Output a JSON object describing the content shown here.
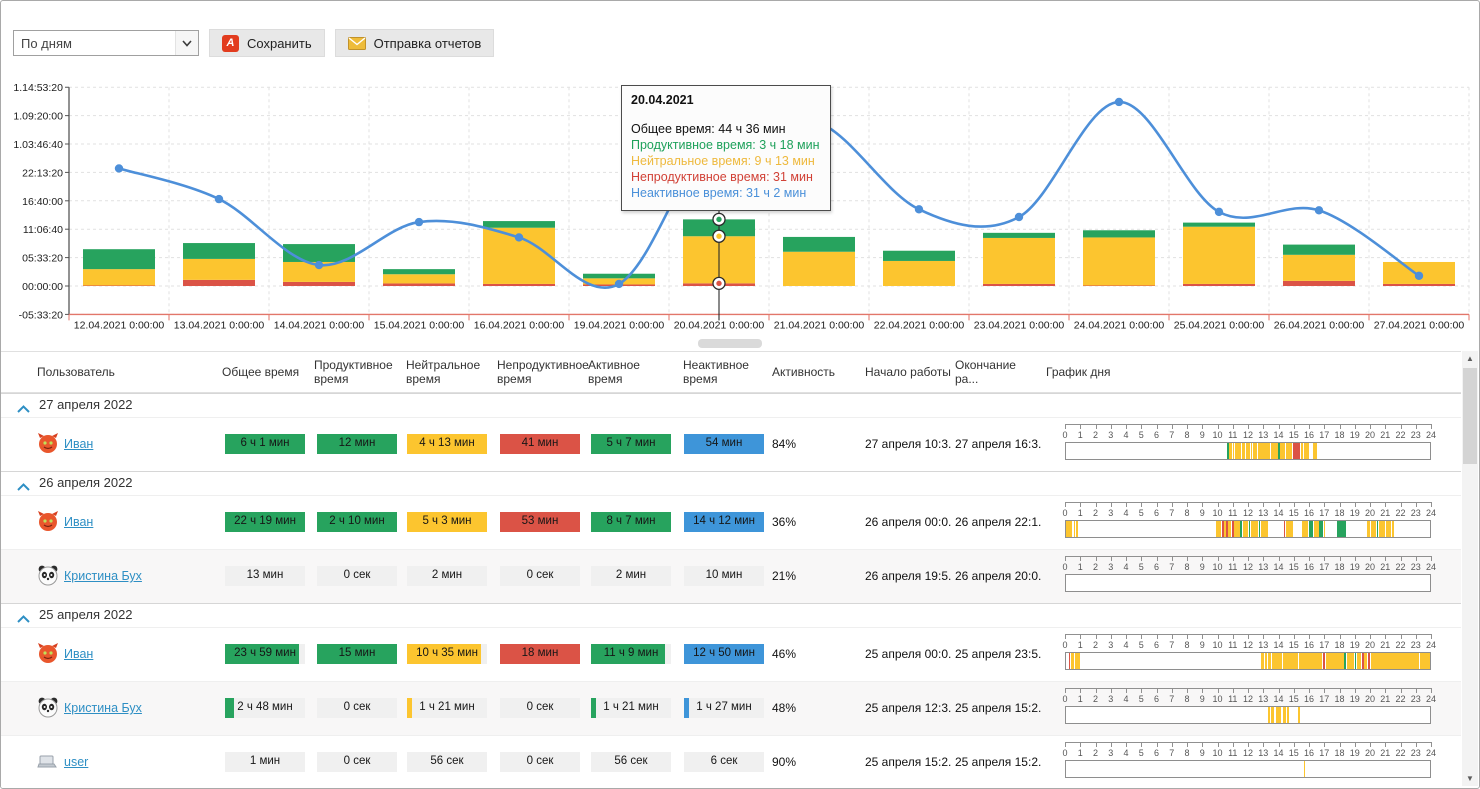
{
  "toolbar": {
    "period_select": "По дням",
    "save_label": "Сохранить",
    "send_label": "Отправка отчетов"
  },
  "chart_data": {
    "type": "bar",
    "title": "",
    "y_tick_labels": [
      "1.14:53:20",
      "1.09:20:00",
      "1.03:46:40",
      "22:13:20",
      "16:40:00",
      "11:06:40",
      "05:33:20",
      "00:00:00",
      "-05:33:20"
    ],
    "y_range_hours": [
      -5.556,
      38.889
    ],
    "categories": [
      "12.04.2021 0:00:00",
      "13.04.2021 0:00:00",
      "14.04.2021 0:00:00",
      "15.04.2021 0:00:00",
      "16.04.2021 0:00:00",
      "19.04.2021 0:00:00",
      "20.04.2021 0:00:00",
      "21.04.2021 0:00:00",
      "22.04.2021 0:00:00",
      "23.04.2021 0:00:00",
      "24.04.2021 0:00:00",
      "25.04.2021 0:00:00",
      "26.04.2021 0:00:00",
      "27.04.2021 0:00:00"
    ],
    "series": [
      {
        "name": "Продуктивное время",
        "color": "#27A35E",
        "values": [
          3.9,
          3.1,
          3.5,
          1.0,
          1.3,
          0.9,
          3.3,
          2.9,
          2.0,
          1.0,
          1.4,
          0.8,
          2.0,
          0.0
        ]
      },
      {
        "name": "Нейтральное время",
        "color": "#FCC52F",
        "values": [
          3.2,
          4.1,
          3.9,
          1.8,
          11.0,
          1.2,
          9.217,
          6.7,
          4.9,
          9.0,
          9.4,
          11.2,
          5.1,
          4.3
        ]
      },
      {
        "name": "Непродуктивное время",
        "color": "#DB5346",
        "values": [
          0.1,
          1.2,
          0.8,
          0.5,
          0.4,
          0.3,
          0.517,
          0.0,
          0.0,
          0.4,
          0.1,
          0.4,
          1.0,
          0.4
        ]
      },
      {
        "name": "Неактивное время (линия)",
        "color": "#4D8FD9",
        "type": "line",
        "values": [
          23,
          17,
          4.1,
          12.5,
          9.5,
          0.4,
          31.03,
          32,
          15,
          13.5,
          36,
          14.5,
          14.8,
          2
        ]
      }
    ],
    "selected_index": 6,
    "grid": true,
    "legend_position": "none"
  },
  "tooltip": {
    "title": "20.04.2021",
    "total": "Общее время: 44 ч 36 мин",
    "productive": "Продуктивное время: 3 ч 18 мин",
    "neutral": "Нейтральное время: 9 ч 13 мин",
    "unproductive": "Непродуктивное время: 31 мин",
    "inactive": "Неактивное время: 31 ч 2 мин"
  },
  "palette": {
    "green": "#27A35E",
    "yellow": "#FCC52F",
    "red": "#DB5346",
    "blue": "#3E95D9",
    "line": "#4D8FD9",
    "badge_gray": "#F0F0F0",
    "axis_red": "#E2766A",
    "link": "#2E8FC4"
  },
  "table": {
    "columns": [
      "Пользователь",
      "Общее время",
      "Продуктивное время",
      "Нейтральное время",
      "Непродуктивное время",
      "Активное время",
      "Неактивное время",
      "Активность",
      "Начало работы",
      "Окончание ра...",
      "График дня"
    ],
    "groups": [
      {
        "date": "27 апреля 2022",
        "rows": [
          {
            "user": "Иван",
            "avatar": "devil",
            "badges": [
              {
                "t": "6 ч 1 мин",
                "c": "green",
                "f": 1
              },
              {
                "t": "12 мин",
                "c": "green",
                "f": 1
              },
              {
                "t": "4 ч 13 мин",
                "c": "yellow",
                "f": 1
              },
              {
                "t": "41 мин",
                "c": "red",
                "f": 1
              },
              {
                "t": "5 ч 7 мин",
                "c": "green",
                "f": 1
              },
              {
                "t": "54 мин",
                "c": "blue",
                "f": 1
              }
            ],
            "activity": "84%",
            "start": "27 апреля 10:3...",
            "end": "27 апреля 16:3...",
            "timeline": [
              [
                10.6,
                10.72,
                "g"
              ],
              [
                10.72,
                10.95,
                "y"
              ],
              [
                11.02,
                11.1,
                "y"
              ],
              [
                11.16,
                11.26,
                "y"
              ],
              [
                11.3,
                11.55,
                "y"
              ],
              [
                11.62,
                11.78,
                "y"
              ],
              [
                11.84,
                12.1,
                "y"
              ],
              [
                12.18,
                12.24,
                "y"
              ],
              [
                12.3,
                12.6,
                "y"
              ],
              [
                12.65,
                13.1,
                "y"
              ],
              [
                13.15,
                13.45,
                "y"
              ],
              [
                13.5,
                13.62,
                "y"
              ],
              [
                13.68,
                13.98,
                "y"
              ],
              [
                14.0,
                14.08,
                "g"
              ],
              [
                14.1,
                14.45,
                "y"
              ],
              [
                14.5,
                14.88,
                "y"
              ],
              [
                14.95,
                15.42,
                "r"
              ],
              [
                15.48,
                15.6,
                "y"
              ],
              [
                15.66,
                16.05,
                "y"
              ],
              [
                16.28,
                16.55,
                "y"
              ]
            ]
          }
        ]
      },
      {
        "date": "26 апреля 2022",
        "rows": [
          {
            "user": "Иван",
            "avatar": "devil",
            "badges": [
              {
                "t": "22 ч 19 мин",
                "c": "green",
                "f": 1
              },
              {
                "t": "2 ч 10 мин",
                "c": "green",
                "f": 1
              },
              {
                "t": "5 ч 3 мин",
                "c": "yellow",
                "f": 1
              },
              {
                "t": "53 мин",
                "c": "red",
                "f": 1
              },
              {
                "t": "8 ч 7 мин",
                "c": "green",
                "f": 1
              },
              {
                "t": "14 ч 12 мин",
                "c": "blue",
                "f": 1
              }
            ],
            "activity": "36%",
            "start": "26 апреля 00:0...",
            "end": "26 апреля 22:1...",
            "timeline": [
              [
                0,
                0.12,
                "y"
              ],
              [
                0.16,
                0.3,
                "y"
              ],
              [
                0.34,
                0.42,
                "y"
              ],
              [
                0.5,
                0.62,
                "y"
              ],
              [
                0.68,
                0.78,
                "y"
              ],
              [
                9.9,
                10.25,
                "y"
              ],
              [
                10.28,
                10.42,
                "r"
              ],
              [
                10.45,
                10.55,
                "y"
              ],
              [
                10.58,
                10.66,
                "r"
              ],
              [
                10.7,
                10.9,
                "y"
              ],
              [
                10.95,
                11.05,
                "r"
              ],
              [
                11.1,
                11.45,
                "y"
              ],
              [
                11.5,
                11.6,
                "g"
              ],
              [
                11.65,
                12.0,
                "y"
              ],
              [
                12.05,
                12.15,
                "g"
              ],
              [
                12.2,
                12.65,
                "y"
              ],
              [
                12.7,
                12.8,
                "g"
              ],
              [
                12.85,
                13.1,
                "y"
              ],
              [
                13.15,
                13.3,
                "y"
              ],
              [
                14.35,
                14.45,
                "r"
              ],
              [
                14.5,
                14.95,
                "y"
              ],
              [
                15.55,
                15.95,
                "y"
              ],
              [
                16.0,
                16.28,
                "g"
              ],
              [
                16.32,
                16.66,
                "y"
              ],
              [
                16.7,
                16.95,
                "g"
              ],
              [
                17.0,
                17.1,
                "y"
              ],
              [
                17.85,
                18.45,
                "g"
              ],
              [
                19.85,
                20.05,
                "y"
              ],
              [
                20.1,
                20.45,
                "y"
              ],
              [
                20.5,
                20.6,
                "g"
              ],
              [
                20.65,
                21.05,
                "y"
              ],
              [
                21.1,
                21.45,
                "y"
              ],
              [
                21.5,
                21.65,
                "y"
              ]
            ]
          },
          {
            "user": "Кристина Бух",
            "avatar": "panda",
            "badges": [
              {
                "t": "13 мин",
                "c": "none",
                "f": 0
              },
              {
                "t": "0 сек",
                "c": "none",
                "f": 0
              },
              {
                "t": "2 мин",
                "c": "none",
                "f": 0
              },
              {
                "t": "0 сек",
                "c": "none",
                "f": 0
              },
              {
                "t": "2 мин",
                "c": "none",
                "f": 0
              },
              {
                "t": "10 мин",
                "c": "none",
                "f": 0
              }
            ],
            "activity": "21%",
            "start": "26 апреля 19:5...",
            "end": "26 апреля 20:0...",
            "timeline": []
          }
        ]
      },
      {
        "date": "25 апреля 2022",
        "rows": [
          {
            "user": "Иван",
            "avatar": "devil",
            "badges": [
              {
                "t": "23 ч 59 мин",
                "c": "green",
                "f": 0.93
              },
              {
                "t": "15 мин",
                "c": "green",
                "f": 1
              },
              {
                "t": "10 ч 35 мин",
                "c": "yellow",
                "f": 0.93
              },
              {
                "t": "18 мин",
                "c": "red",
                "f": 1
              },
              {
                "t": "11 ч 9 мин",
                "c": "green",
                "f": 0.93
              },
              {
                "t": "12 ч 50 мин",
                "c": "blue",
                "f": 1
              }
            ],
            "activity": "46%",
            "start": "25 апреля 00:0...",
            "end": "25 апреля 23:5...",
            "timeline": [
              [
                0.18,
                0.28,
                "r"
              ],
              [
                0.3,
                0.55,
                "y"
              ],
              [
                0.6,
                0.95,
                "y"
              ],
              [
                12.85,
                13.05,
                "y"
              ],
              [
                13.1,
                13.25,
                "y"
              ],
              [
                13.3,
                13.55,
                "y"
              ],
              [
                13.6,
                13.75,
                "y"
              ],
              [
                13.8,
                14.25,
                "y"
              ],
              [
                14.3,
                15.3,
                "y"
              ],
              [
                15.35,
                16.9,
                "y"
              ],
              [
                16.95,
                17.1,
                "r"
              ],
              [
                17.15,
                18.3,
                "y"
              ],
              [
                18.35,
                18.45,
                "g"
              ],
              [
                18.5,
                19.0,
                "y"
              ],
              [
                19.05,
                19.15,
                "g"
              ],
              [
                19.2,
                19.45,
                "y"
              ],
              [
                19.5,
                19.62,
                "r"
              ],
              [
                19.68,
                19.85,
                "y"
              ],
              [
                19.9,
                20.05,
                "r"
              ],
              [
                20.1,
                21.4,
                "y"
              ],
              [
                21.45,
                22.4,
                "y"
              ],
              [
                22.45,
                23.3,
                "y"
              ],
              [
                23.35,
                24.0,
                "y"
              ]
            ]
          },
          {
            "user": "Кристина Бух",
            "avatar": "panda",
            "badges": [
              {
                "t": "2 ч 48 мин",
                "c": "green",
                "f": 0.11
              },
              {
                "t": "0 сек",
                "c": "none",
                "f": 0
              },
              {
                "t": "1 ч 21 мин",
                "c": "yellow",
                "f": 0.06
              },
              {
                "t": "0 сек",
                "c": "none",
                "f": 0
              },
              {
                "t": "1 ч 21 мин",
                "c": "green",
                "f": 0.06
              },
              {
                "t": "1 ч 27 мин",
                "c": "blue",
                "f": 0.06
              }
            ],
            "activity": "48%",
            "start": "25 апреля 12:3...",
            "end": "25 апреля 15:2...",
            "timeline": [
              [
                13.3,
                13.42,
                "y"
              ],
              [
                13.52,
                13.72,
                "y"
              ],
              [
                13.82,
                14.18,
                "y"
              ],
              [
                14.28,
                14.52,
                "y"
              ],
              [
                14.6,
                14.68,
                "y"
              ],
              [
                15.28,
                15.42,
                "y"
              ]
            ]
          },
          {
            "user": "user",
            "avatar": "computer",
            "badges": [
              {
                "t": "1 мин",
                "c": "none",
                "f": 0
              },
              {
                "t": "0 сек",
                "c": "none",
                "f": 0
              },
              {
                "t": "56 сек",
                "c": "none",
                "f": 0
              },
              {
                "t": "0 сек",
                "c": "none",
                "f": 0
              },
              {
                "t": "56 сек",
                "c": "none",
                "f": 0
              },
              {
                "t": "6 сек",
                "c": "none",
                "f": 0
              }
            ],
            "activity": "90%",
            "start": "25 апреля 15:2...",
            "end": "25 апреля 15:2...",
            "timeline": [
              [
                15.72,
                15.78,
                "y"
              ]
            ]
          }
        ]
      }
    ]
  }
}
